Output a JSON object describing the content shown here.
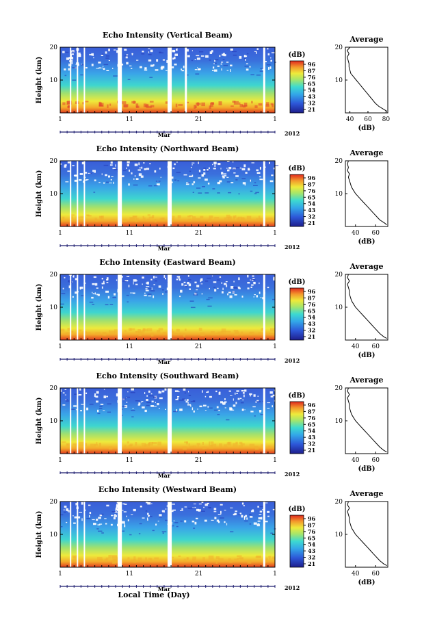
{
  "figure": {
    "xlabel": "Local Time (Day)",
    "month_label": "Mar",
    "year_label": "2012",
    "x_tick_labels": [
      "1",
      "11",
      "21",
      "1"
    ],
    "y_tick_labels": [
      "10",
      "20"
    ],
    "ylabel": "Height (km)",
    "colorbar_unit": "(dB)",
    "colorbar_ticks": [
      "96",
      "87",
      "76",
      "65",
      "54",
      "43",
      "32",
      "21"
    ],
    "profile_title": "Average",
    "profile_xlabel": "(dB)",
    "colors": {
      "low": "#23239a",
      "mid_low": "#2f7fe0",
      "mid": "#3ad9d0",
      "mid_high": "#e8e83a",
      "high": "#e8281e",
      "axis_navy": "#1a1a6e"
    }
  },
  "chart_data": [
    {
      "type": "heatmap",
      "title": "Echo Intensity (Vertical Beam)",
      "xlabel": "",
      "ylabel": "Height (km)",
      "x_range_days": [
        1,
        32
      ],
      "ylim_km": [
        0,
        20
      ],
      "colorbar_range_db": [
        21,
        96
      ],
      "data_gaps_day": [
        [
          2.4,
          2.6
        ],
        [
          3.4,
          3.6
        ],
        [
          4.4,
          4.6
        ],
        [
          9.3,
          9.9
        ],
        [
          16.5,
          17.1
        ],
        [
          19.0,
          19.3
        ],
        [
          30.3,
          30.6
        ]
      ],
      "profile": {
        "title": "Average",
        "xlabel": "(dB)",
        "x_tick_labels": [
          "40",
          "60",
          "80"
        ],
        "xlim": [
          35,
          82
        ],
        "height_km": [
          0.5,
          1,
          2,
          3,
          4,
          5,
          6,
          7,
          8,
          9,
          10,
          11,
          12,
          13,
          14,
          15,
          16,
          17,
          18,
          19,
          20
        ],
        "avg_db": [
          81,
          78,
          72,
          68,
          65,
          62,
          59,
          56,
          53,
          50,
          47,
          44,
          41,
          40,
          39,
          39,
          38,
          37,
          39,
          37,
          40
        ]
      }
    },
    {
      "type": "heatmap",
      "title": "Echo Intensity (Northward Beam)",
      "xlabel": "",
      "ylabel": "Height (km)",
      "x_range_days": [
        1,
        32
      ],
      "ylim_km": [
        0,
        20
      ],
      "colorbar_range_db": [
        21,
        96
      ],
      "data_gaps_day": [
        [
          2.4,
          2.6
        ],
        [
          3.4,
          3.6
        ],
        [
          4.4,
          4.6
        ],
        [
          9.3,
          9.9
        ],
        [
          16.5,
          17.1
        ],
        [
          30.3,
          30.6
        ]
      ],
      "profile": {
        "title": "Average",
        "xlabel": "(dB)",
        "x_tick_labels": [
          "40",
          "60"
        ],
        "xlim": [
          30,
          72
        ],
        "height_km": [
          0.5,
          1,
          2,
          3,
          4,
          5,
          6,
          7,
          8,
          9,
          10,
          11,
          12,
          13,
          14,
          15,
          16,
          17,
          18,
          19,
          20
        ],
        "avg_db": [
          71,
          69,
          64,
          61,
          58,
          55,
          52,
          49,
          46,
          43,
          40,
          38,
          36,
          35,
          34,
          33,
          34,
          32,
          33,
          32,
          33
        ]
      }
    },
    {
      "type": "heatmap",
      "title": "Echo Intensity (Eastward Beam)",
      "xlabel": "",
      "ylabel": "Height (km)",
      "x_range_days": [
        1,
        32
      ],
      "ylim_km": [
        0,
        20
      ],
      "colorbar_range_db": [
        21,
        96
      ],
      "data_gaps_day": [
        [
          2.4,
          2.6
        ],
        [
          3.4,
          3.6
        ],
        [
          4.4,
          4.6
        ],
        [
          9.3,
          9.9
        ],
        [
          16.5,
          17.1
        ],
        [
          30.3,
          30.6
        ]
      ],
      "profile": {
        "title": "Average",
        "xlabel": "(dB)",
        "x_tick_labels": [
          "40",
          "60"
        ],
        "xlim": [
          30,
          72
        ],
        "height_km": [
          0.5,
          1,
          2,
          3,
          4,
          5,
          6,
          7,
          8,
          9,
          10,
          11,
          12,
          13,
          14,
          15,
          16,
          17,
          18,
          19,
          20
        ],
        "avg_db": [
          71,
          68,
          64,
          61,
          58,
          55,
          52,
          49,
          46,
          43,
          40,
          38,
          36,
          35,
          34,
          34,
          33,
          32,
          34,
          32,
          33
        ]
      }
    },
    {
      "type": "heatmap",
      "title": "Echo Intensity (Southward Beam)",
      "xlabel": "",
      "ylabel": "Height (km)",
      "x_range_days": [
        1,
        32
      ],
      "ylim_km": [
        0,
        20
      ],
      "colorbar_range_db": [
        21,
        96
      ],
      "data_gaps_day": [
        [
          2.4,
          2.6
        ],
        [
          3.4,
          3.6
        ],
        [
          4.4,
          4.6
        ],
        [
          9.3,
          9.9
        ],
        [
          16.5,
          17.1
        ],
        [
          30.3,
          30.6
        ]
      ],
      "profile": {
        "title": "Average",
        "xlabel": "(dB)",
        "x_tick_labels": [
          "40",
          "60"
        ],
        "xlim": [
          30,
          72
        ],
        "height_km": [
          0.5,
          1,
          2,
          3,
          4,
          5,
          6,
          7,
          8,
          9,
          10,
          11,
          12,
          13,
          14,
          15,
          16,
          17,
          18,
          19,
          20
        ],
        "avg_db": [
          71,
          68,
          64,
          61,
          58,
          55,
          52,
          49,
          46,
          43,
          40,
          38,
          36,
          35,
          34,
          34,
          33,
          32,
          34,
          32,
          33
        ]
      }
    },
    {
      "type": "heatmap",
      "title": "Echo Intensity (Westward Beam)",
      "xlabel": "Local Time (Day)",
      "ylabel": "Height (km)",
      "x_range_days": [
        1,
        32
      ],
      "ylim_km": [
        0,
        20
      ],
      "colorbar_range_db": [
        21,
        96
      ],
      "data_gaps_day": [
        [
          2.4,
          2.6
        ],
        [
          3.4,
          3.6
        ],
        [
          4.4,
          4.6
        ],
        [
          9.3,
          9.9
        ],
        [
          16.5,
          17.1
        ],
        [
          30.3,
          30.6
        ]
      ],
      "profile": {
        "title": "Average",
        "xlabel": "(dB)",
        "x_tick_labels": [
          "40",
          "60"
        ],
        "xlim": [
          30,
          72
        ],
        "height_km": [
          0.5,
          1,
          2,
          3,
          4,
          5,
          6,
          7,
          8,
          9,
          10,
          11,
          12,
          13,
          14,
          15,
          16,
          17,
          18,
          19,
          20
        ],
        "avg_db": [
          71,
          68,
          64,
          61,
          58,
          55,
          52,
          49,
          46,
          43,
          40,
          38,
          36,
          35,
          34,
          34,
          33,
          32,
          34,
          32,
          33
        ]
      }
    }
  ]
}
